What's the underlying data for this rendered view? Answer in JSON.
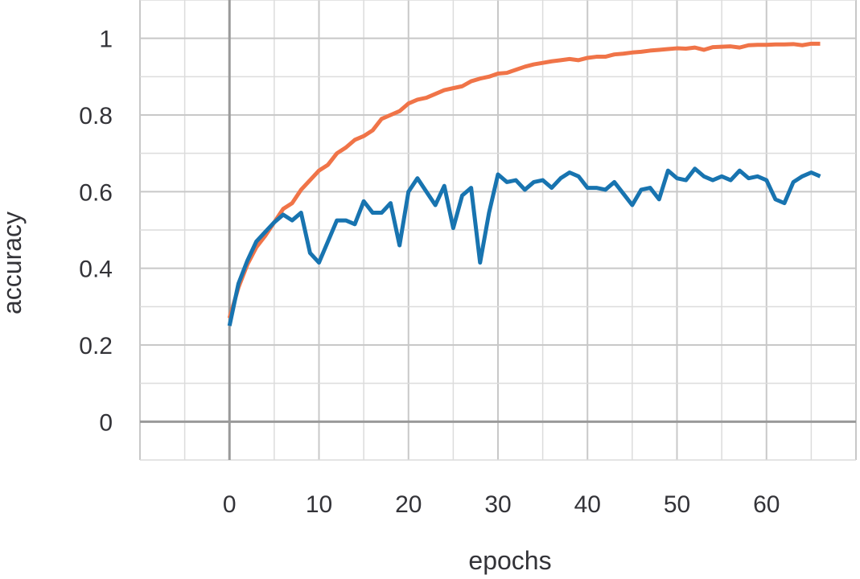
{
  "chart_data": {
    "type": "line",
    "title": "",
    "xlabel": "epochs",
    "ylabel": "accuracy",
    "xlim": [
      -10,
      70
    ],
    "ylim": [
      -0.1,
      1.1
    ],
    "grid": true,
    "legend": "none",
    "x_ticks": [
      0,
      10,
      20,
      30,
      40,
      50,
      60
    ],
    "x_tick_labels": [
      "0",
      "10",
      "20",
      "30",
      "40",
      "50",
      "60"
    ],
    "y_ticks": [
      0,
      0.2,
      0.4,
      0.6,
      0.8,
      1
    ],
    "y_tick_labels": [
      "0",
      "0.2",
      "0.4",
      "0.6",
      "0.8",
      "1"
    ],
    "x": [
      0,
      1,
      2,
      3,
      4,
      5,
      6,
      7,
      8,
      9,
      10,
      11,
      12,
      13,
      14,
      15,
      16,
      17,
      18,
      19,
      20,
      21,
      22,
      23,
      24,
      25,
      26,
      27,
      28,
      29,
      30,
      31,
      32,
      33,
      34,
      35,
      36,
      37,
      38,
      39,
      40,
      41,
      42,
      43,
      44,
      45,
      46,
      47,
      48,
      49,
      50,
      51,
      52,
      53,
      54,
      55,
      56,
      57,
      58,
      59,
      60,
      61,
      62,
      63,
      64,
      65,
      66
    ],
    "series": [
      {
        "color": "#f07448",
        "values": [
          0.27,
          0.35,
          0.41,
          0.455,
          0.485,
          0.52,
          0.555,
          0.57,
          0.605,
          0.63,
          0.655,
          0.67,
          0.7,
          0.715,
          0.735,
          0.745,
          0.76,
          0.79,
          0.8,
          0.81,
          0.83,
          0.84,
          0.845,
          0.855,
          0.865,
          0.87,
          0.875,
          0.888,
          0.895,
          0.9,
          0.908,
          0.91,
          0.918,
          0.926,
          0.932,
          0.936,
          0.94,
          0.943,
          0.946,
          0.943,
          0.949,
          0.952,
          0.952,
          0.958,
          0.96,
          0.963,
          0.965,
          0.968,
          0.97,
          0.972,
          0.974,
          0.973,
          0.976,
          0.97,
          0.977,
          0.978,
          0.979,
          0.976,
          0.982,
          0.983,
          0.983,
          0.984,
          0.984,
          0.985,
          0.982,
          0.986,
          0.986
        ]
      },
      {
        "color": "#1874b0",
        "values": [
          0.25,
          0.36,
          0.42,
          0.47,
          0.495,
          0.52,
          0.54,
          0.525,
          0.545,
          0.44,
          0.415,
          0.47,
          0.525,
          0.525,
          0.515,
          0.575,
          0.545,
          0.545,
          0.57,
          0.46,
          0.6,
          0.635,
          0.6,
          0.565,
          0.615,
          0.505,
          0.59,
          0.61,
          0.415,
          0.545,
          0.645,
          0.625,
          0.63,
          0.605,
          0.625,
          0.63,
          0.61,
          0.635,
          0.65,
          0.64,
          0.61,
          0.61,
          0.605,
          0.625,
          0.595,
          0.565,
          0.605,
          0.61,
          0.58,
          0.655,
          0.635,
          0.63,
          0.66,
          0.64,
          0.63,
          0.64,
          0.63,
          0.655,
          0.635,
          0.64,
          0.63,
          0.58,
          0.57,
          0.625,
          0.64,
          0.65,
          0.64
        ]
      }
    ]
  }
}
